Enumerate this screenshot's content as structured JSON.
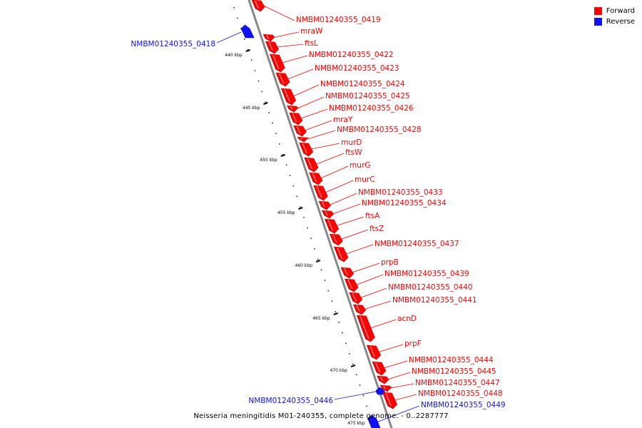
{
  "legend": {
    "forward_label": "Forward",
    "reverse_label": "Reverse",
    "forward_color": "#ff0000",
    "reverse_color": "#1010ff"
  },
  "caption": "Neisseria meningitidis M01-240355, complete genome. - 0..2287777",
  "colors": {
    "forward": "#ff0000",
    "forward_dark": "#b00000",
    "reverse": "#1010ff",
    "reverse_dark": "#0000a0",
    "backbone": "#888888",
    "tick": "#111111"
  },
  "ruler": {
    "unit": "kbp",
    "labels": [
      "440 kbp",
      "445 kbp",
      "450 kbp",
      "455 kbp",
      "460 kbp",
      "465 kbp",
      "470 kbp",
      "475 kbp"
    ]
  },
  "genes": [
    {
      "name": "NMBM01240355_0419",
      "strand": "forward"
    },
    {
      "name": "NMBM01240355_0418",
      "strand": "reverse"
    },
    {
      "name": "mraW",
      "strand": "forward"
    },
    {
      "name": "ftsL",
      "strand": "forward"
    },
    {
      "name": "NMBM01240355_0422",
      "strand": "forward"
    },
    {
      "name": "NMBM01240355_0423",
      "strand": "forward"
    },
    {
      "name": "NMBM01240355_0424",
      "strand": "forward"
    },
    {
      "name": "NMBM01240355_0425",
      "strand": "forward"
    },
    {
      "name": "NMBM01240355_0426",
      "strand": "forward"
    },
    {
      "name": "mraY",
      "strand": "forward"
    },
    {
      "name": "NMBM01240355_0428",
      "strand": "forward"
    },
    {
      "name": "murD",
      "strand": "forward"
    },
    {
      "name": "ftsW",
      "strand": "forward"
    },
    {
      "name": "murG",
      "strand": "forward"
    },
    {
      "name": "murC",
      "strand": "forward"
    },
    {
      "name": "NMBM01240355_0433",
      "strand": "forward"
    },
    {
      "name": "NMBM01240355_0434",
      "strand": "forward"
    },
    {
      "name": "ftsA",
      "strand": "forward"
    },
    {
      "name": "ftsZ",
      "strand": "forward"
    },
    {
      "name": "NMBM01240355_0437",
      "strand": "forward"
    },
    {
      "name": "prpB",
      "strand": "forward"
    },
    {
      "name": "NMBM01240355_0439",
      "strand": "forward"
    },
    {
      "name": "NMBM01240355_0440",
      "strand": "forward"
    },
    {
      "name": "NMBM01240355_0441",
      "strand": "forward"
    },
    {
      "name": "acnD",
      "strand": "forward"
    },
    {
      "name": "prpF",
      "strand": "forward"
    },
    {
      "name": "NMBM01240355_0444",
      "strand": "forward"
    },
    {
      "name": "NMBM01240355_0445",
      "strand": "forward"
    },
    {
      "name": "NMBM01240355_0447",
      "strand": "forward"
    },
    {
      "name": "NMBM01240355_0446",
      "strand": "reverse"
    },
    {
      "name": "NMBM01240355_0448",
      "strand": "forward"
    },
    {
      "name": "NMBM01240355_0449",
      "strand": "reverse"
    }
  ]
}
